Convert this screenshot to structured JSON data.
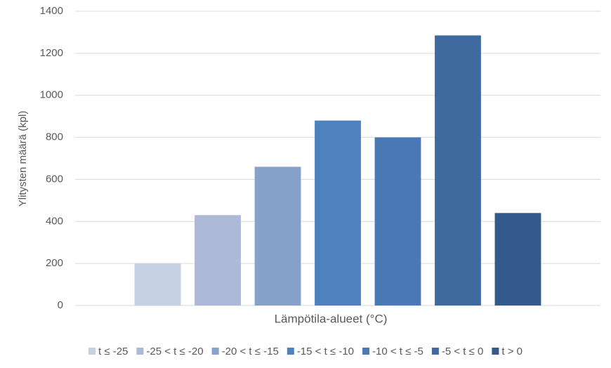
{
  "chart_data": {
    "type": "bar",
    "y_label": "Ylitysten määrä (kpl)",
    "x_label": "Lämpötila-alueet (°C)",
    "categories": [
      null
    ],
    "series": [
      {
        "name": "t ≤ -25",
        "color": "#c5d0e2",
        "values": [
          200
        ]
      },
      {
        "name": "-25 < t ≤ -20",
        "color": "#acbad8",
        "values": [
          430
        ]
      },
      {
        "name": "-20 < t ≤ -15",
        "color": "#86a2cb",
        "values": [
          660
        ]
      },
      {
        "name": "-15 < t ≤ -10",
        "color": "#4f81bd",
        "values": [
          880
        ]
      },
      {
        "name": "-10 < t ≤ -5",
        "color": "#4a79b5",
        "values": [
          800
        ]
      },
      {
        "name": "-5 < t ≤ 0",
        "color": "#3f6a9f",
        "values": [
          1285
        ]
      },
      {
        "name": "t > 0",
        "color": "#34598a",
        "values": [
          440
        ]
      }
    ],
    "ylim": [
      0,
      1400
    ],
    "yticks": [
      0,
      200,
      400,
      600,
      800,
      1000,
      1200,
      1400
    ],
    "grid": true,
    "legend": "bottom"
  }
}
